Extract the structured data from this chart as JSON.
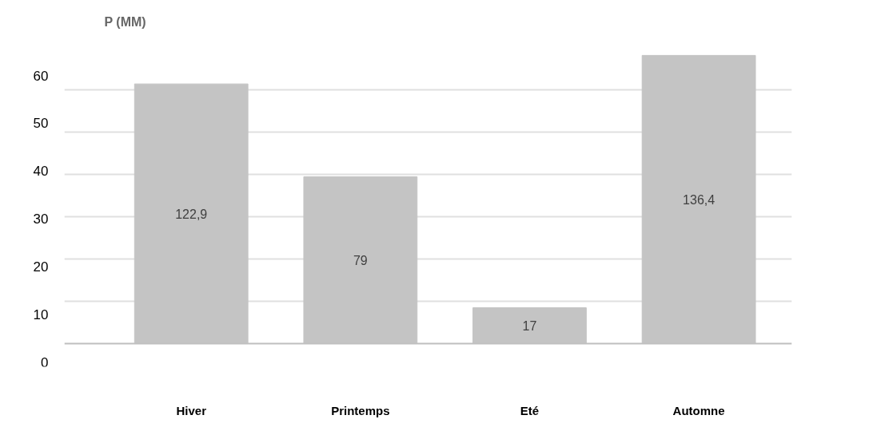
{
  "chart_data": {
    "type": "bar",
    "ylabel": "P (MM)",
    "categories": [
      "Hiver",
      "Printemps",
      "Eté",
      "Automne"
    ],
    "values": [
      122.9,
      79,
      17,
      136.4
    ],
    "color": "#c4c4c4",
    "data_labels": true,
    "value_labels": [
      "122,9",
      "79",
      "17",
      "136,4"
    ],
    "yticks": [
      {
        "value": 20,
        "label": null
      },
      {
        "value": 40,
        "label": null
      },
      {
        "value": 60,
        "label": null
      },
      {
        "value": 80,
        "label": null
      },
      {
        "value": 100,
        "label": null
      },
      {
        "value": 120,
        "label": null
      }
    ],
    "annotations": [
      "60",
      "50",
      "40",
      "30",
      "20",
      "10",
      "0"
    ],
    "grid": "y"
  }
}
